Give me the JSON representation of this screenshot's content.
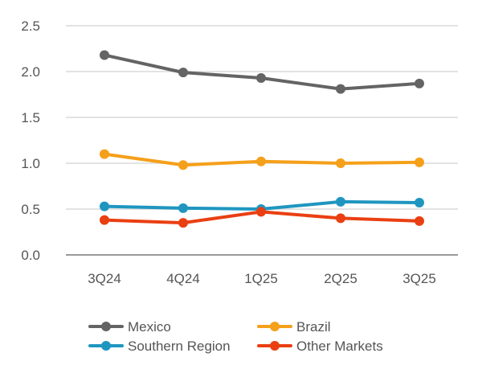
{
  "chart_data": {
    "type": "line",
    "categories": [
      "3Q24",
      "4Q24",
      "1Q25",
      "2Q25",
      "3Q25"
    ],
    "series": [
      {
        "name": "Mexico",
        "color": "#646464",
        "values": [
          2.18,
          1.99,
          1.93,
          1.81,
          1.87
        ]
      },
      {
        "name": "Brazil",
        "color": "#f5a01a",
        "values": [
          1.1,
          0.98,
          1.02,
          1.0,
          1.01
        ]
      },
      {
        "name": "Southern Region",
        "color": "#1f96c0",
        "values": [
          0.53,
          0.51,
          0.5,
          0.58,
          0.57
        ]
      },
      {
        "name": "Other Markets",
        "color": "#ea3f12",
        "values": [
          0.38,
          0.35,
          0.47,
          0.4,
          0.37
        ]
      }
    ],
    "y_ticks": [
      "0.0",
      "0.5",
      "1.0",
      "1.5",
      "2.0",
      "2.5"
    ],
    "ylim": [
      0,
      2.5
    ],
    "grid": true,
    "legend_position": "bottom",
    "title": "",
    "xlabel": "",
    "ylabel": ""
  }
}
